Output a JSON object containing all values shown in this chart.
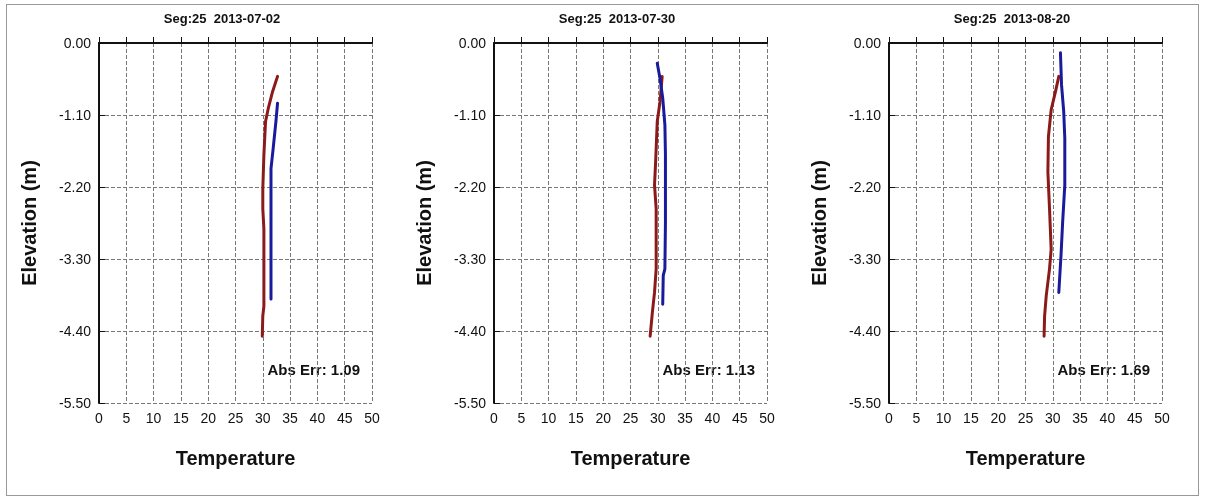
{
  "chart_data": [
    {
      "type": "line",
      "title": "Seg:25  2013-07-02",
      "xlabel": "Temperature",
      "ylabel": "Elevation (m)",
      "xlim": [
        0,
        50
      ],
      "xticks": [
        0,
        5,
        10,
        15,
        20,
        25,
        30,
        35,
        40,
        45,
        50
      ],
      "ylim": [
        -5.5,
        0
      ],
      "yticks": [
        {
          "value": 0,
          "label": "0.00"
        },
        {
          "value": -1.1,
          "label": "-1.10"
        },
        {
          "value": -2.2,
          "label": "-2.20"
        },
        {
          "value": -3.3,
          "label": "-3.30"
        },
        {
          "value": -4.4,
          "label": "-4.40"
        },
        {
          "value": -5.5,
          "label": "-5.50"
        }
      ],
      "grid": true,
      "marker": "none",
      "line_style": "solid",
      "annotations": [
        "Abs Err: 1.09"
      ],
      "series": [
        {
          "color": "#8b1a1a",
          "x": [
            32.7,
            31.8,
            31.0,
            30.5,
            30.2,
            30.0,
            30.0,
            30.2,
            30.2,
            30.0,
            29.9
          ],
          "values": [
            -0.51,
            -0.74,
            -1.0,
            -1.2,
            -1.71,
            -2.23,
            -2.53,
            -2.84,
            -4.02,
            -4.17,
            -4.48
          ]
        },
        {
          "color": "#1a1a9c",
          "x": [
            32.7,
            32.4,
            31.9,
            31.5,
            31.5,
            31.5
          ],
          "values": [
            -0.92,
            -1.2,
            -1.61,
            -1.92,
            -2.74,
            -3.91
          ]
        }
      ]
    },
    {
      "type": "line",
      "title": "Seg:25  2013-07-30",
      "xlabel": "Temperature",
      "ylabel": "Elevation (m)",
      "xlim": [
        0,
        50
      ],
      "xticks": [
        0,
        5,
        10,
        15,
        20,
        25,
        30,
        35,
        40,
        45,
        50
      ],
      "ylim": [
        -5.5,
        0
      ],
      "yticks": [
        {
          "value": 0,
          "label": "0.00"
        },
        {
          "value": -1.1,
          "label": "-1.10"
        },
        {
          "value": -2.2,
          "label": "-2.20"
        },
        {
          "value": -3.3,
          "label": "-3.30"
        },
        {
          "value": -4.4,
          "label": "-4.40"
        },
        {
          "value": -5.5,
          "label": "-5.50"
        }
      ],
      "grid": true,
      "marker": "none",
      "line_style": "solid",
      "annotations": [
        "Abs Err: 1.13"
      ],
      "series": [
        {
          "color": "#8b1a1a",
          "x": [
            30.8,
            30.4,
            29.9,
            29.6,
            29.4,
            29.7,
            29.7,
            29.4,
            29.0,
            28.6
          ],
          "values": [
            -0.51,
            -0.9,
            -1.2,
            -1.82,
            -2.17,
            -2.53,
            -3.45,
            -3.81,
            -4.12,
            -4.48
          ]
        },
        {
          "color": "#1a1a9c",
          "x": [
            29.9,
            30.4,
            30.9,
            31.3,
            31.4,
            31.4,
            31.3,
            31.0,
            30.9
          ],
          "values": [
            -0.31,
            -0.54,
            -0.84,
            -1.25,
            -1.71,
            -2.74,
            -3.45,
            -3.55,
            -3.99
          ]
        }
      ]
    },
    {
      "type": "line",
      "title": "Seg:25  2013-08-20",
      "xlabel": "Temperature",
      "ylabel": "Elevation (m)",
      "xlim": [
        0,
        50
      ],
      "xticks": [
        0,
        5,
        10,
        15,
        20,
        25,
        30,
        35,
        40,
        45,
        50
      ],
      "ylim": [
        -5.5,
        0
      ],
      "yticks": [
        {
          "value": 0,
          "label": "0.00"
        },
        {
          "value": -1.1,
          "label": "-1.10"
        },
        {
          "value": -2.2,
          "label": "-2.20"
        },
        {
          "value": -3.3,
          "label": "-3.30"
        },
        {
          "value": -4.4,
          "label": "-4.40"
        },
        {
          "value": -5.5,
          "label": "-5.50"
        }
      ],
      "grid": true,
      "marker": "none",
      "line_style": "solid",
      "annotations": [
        "Abs Err: 1.69"
      ],
      "series": [
        {
          "color": "#8b1a1a",
          "x": [
            31.1,
            30.5,
            29.7,
            29.2,
            29.1,
            29.4,
            29.7,
            29.4,
            28.8,
            28.5,
            28.4
          ],
          "values": [
            -0.51,
            -0.74,
            -1.02,
            -1.43,
            -1.97,
            -2.53,
            -3.15,
            -3.45,
            -3.86,
            -4.17,
            -4.48
          ]
        },
        {
          "color": "#1a1a9c",
          "x": [
            31.4,
            31.6,
            32.0,
            32.2,
            32.2,
            31.8,
            31.5,
            31.1
          ],
          "values": [
            -0.15,
            -0.64,
            -1.05,
            -1.46,
            -2.17,
            -2.74,
            -3.25,
            -3.81
          ]
        }
      ]
    }
  ]
}
